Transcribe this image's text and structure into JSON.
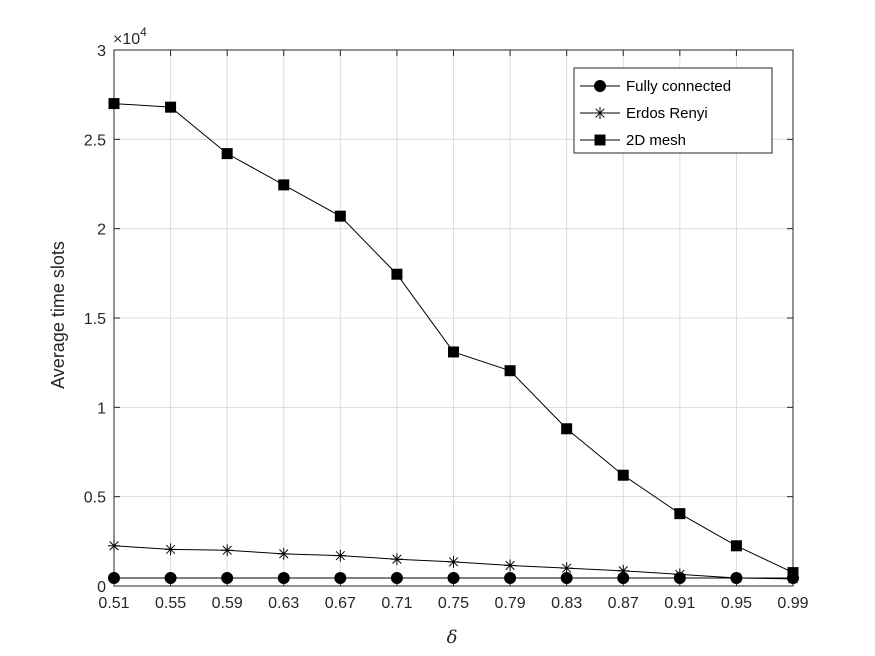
{
  "chart_data": {
    "type": "line",
    "x": [
      0.51,
      0.55,
      0.59,
      0.63,
      0.67,
      0.71,
      0.75,
      0.79,
      0.83,
      0.87,
      0.91,
      0.95,
      0.99
    ],
    "x_tick_labels": [
      "0.51",
      "0.55",
      "0.59",
      "0.63",
      "0.67",
      "0.71",
      "0.75",
      "0.79",
      "0.83",
      "0.87",
      "0.91",
      "0.95",
      "0.99"
    ],
    "xlabel": "δ",
    "ylabel": "Average time slots",
    "ylim": [
      0,
      30000
    ],
    "y_ticks": [
      0,
      5000,
      10000,
      15000,
      20000,
      25000,
      30000
    ],
    "y_tick_labels": [
      "0",
      "0.5",
      "1",
      "1.5",
      "2",
      "2.5",
      "3"
    ],
    "y_exponent_label": "×10",
    "y_exponent_power": "4",
    "grid": true,
    "legend_position": "top-right",
    "series": [
      {
        "name": "Fully connected",
        "marker": "circle",
        "color": "#000000",
        "values": [
          450,
          450,
          450,
          450,
          450,
          450,
          450,
          450,
          450,
          450,
          450,
          450,
          450
        ]
      },
      {
        "name": "Erdos Renyi",
        "marker": "asterisk",
        "color": "#000000",
        "values": [
          2250,
          2050,
          2000,
          1800,
          1700,
          1500,
          1350,
          1150,
          1000,
          850,
          650,
          450,
          400
        ]
      },
      {
        "name": "2D mesh",
        "marker": "square",
        "color": "#000000",
        "values": [
          27000,
          26800,
          24200,
          22450,
          20700,
          17450,
          13100,
          12050,
          8800,
          6200,
          4050,
          2250,
          750
        ]
      }
    ]
  }
}
